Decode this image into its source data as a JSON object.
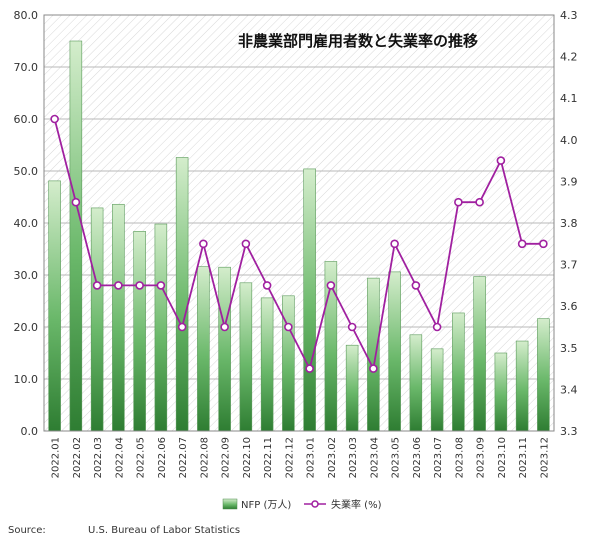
{
  "chart_data": {
    "type": "bar+line",
    "title": "非農業部門雇用者数と失業率の推移",
    "categories": [
      "2022.01",
      "2022.02",
      "2022.03",
      "2022.04",
      "2022.05",
      "2022.06",
      "2022.07",
      "2022.08",
      "2022.09",
      "2022.10",
      "2022.11",
      "2022.12",
      "2023.01",
      "2023.02",
      "2023.03",
      "2023.04",
      "2023.05",
      "2023.06",
      "2023.07",
      "2023.08",
      "2023.09",
      "2023.10",
      "2023.11",
      "2023.12"
    ],
    "series": [
      {
        "name": "NFP (万人)",
        "type": "bar",
        "axis": "left",
        "values": [
          48.1,
          75.0,
          42.9,
          43.6,
          38.4,
          39.8,
          52.6,
          31.6,
          31.5,
          28.5,
          25.6,
          26.0,
          50.4,
          32.6,
          16.5,
          29.4,
          30.6,
          18.5,
          15.8,
          22.7,
          29.7,
          15.0,
          17.3,
          21.6
        ]
      },
      {
        "name": "失業率 (%)",
        "type": "line",
        "axis": "right",
        "values": [
          4.05,
          3.85,
          3.65,
          3.65,
          3.65,
          3.65,
          3.55,
          3.75,
          3.55,
          3.75,
          3.65,
          3.55,
          3.45,
          3.65,
          3.55,
          3.45,
          3.75,
          3.65,
          3.55,
          3.85,
          3.85,
          3.95,
          3.75,
          3.75
        ]
      }
    ],
    "y_left": {
      "min": 0,
      "max": 80,
      "ticks": [
        "0.0",
        "10.0",
        "20.0",
        "30.0",
        "40.0",
        "50.0",
        "60.0",
        "70.0",
        "80.0"
      ]
    },
    "y_right": {
      "min": 3.3,
      "max": 4.3,
      "ticks": [
        "3.3",
        "3.4",
        "3.5",
        "3.6",
        "3.7",
        "3.8",
        "3.9",
        "4.0",
        "4.1",
        "4.2",
        "4.3"
      ]
    },
    "legend_position": "bottom",
    "grid": true,
    "colors": {
      "bar_dark": "#2e7d32",
      "bar_light": "#c8e6c0",
      "line": "#a020a0",
      "marker_fill": "#ffffff"
    }
  },
  "source": {
    "label": "Source:",
    "text": "U.S. Bureau of Labor Statistics"
  }
}
